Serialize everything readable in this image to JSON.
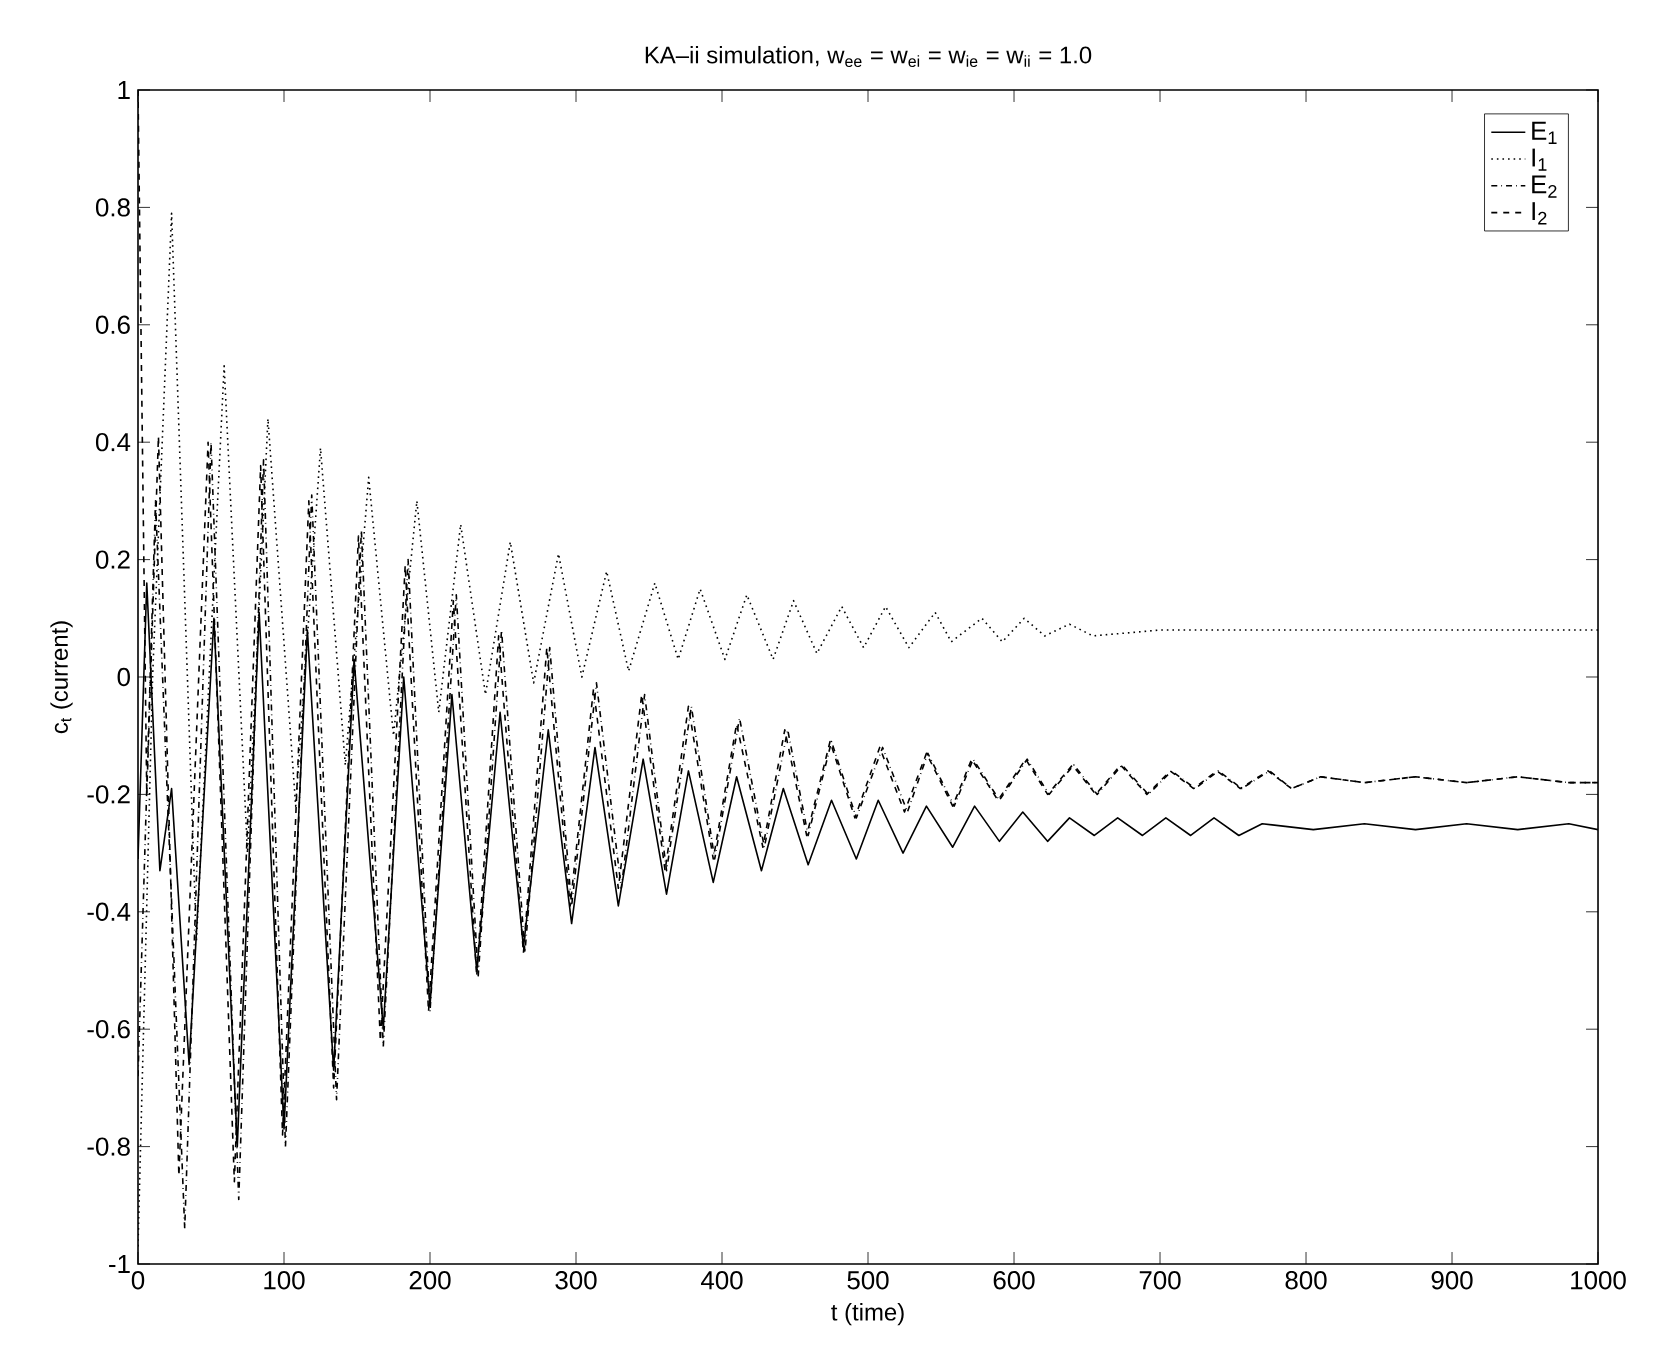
{
  "chart_data": {
    "type": "line",
    "title": "KA–ii simulation, w$_{ee}$ = w$_{ei}$ = w$_{ie}$ = w$_{ii}$ = 1.0",
    "xlabel": "t (time)",
    "ylabel": "c$_{t}$ (current)",
    "xlim": [
      0,
      1000
    ],
    "ylim": [
      -1,
      1
    ],
    "xticks": [
      0,
      100,
      200,
      300,
      400,
      500,
      600,
      700,
      800,
      900,
      1000
    ],
    "yticks": [
      -1,
      -0.8,
      -0.6,
      -0.4,
      -0.2,
      0,
      0.2,
      0.4,
      0.6,
      0.8,
      1
    ],
    "grid": false,
    "legend": "top right",
    "marker": "none",
    "series": [
      {
        "name": "E$_{1}$",
        "color": "#000000",
        "line_style": "solid",
        "x": [
          0,
          6,
          15,
          23,
          35,
          52,
          68,
          83,
          100,
          116,
          134,
          148,
          168,
          182,
          200,
          215,
          232,
          248,
          264,
          281,
          297,
          313,
          329,
          346,
          362,
          377,
          394,
          410,
          427,
          442,
          459,
          475,
          492,
          507,
          524,
          540,
          558,
          573,
          590,
          606,
          623,
          638,
          655,
          671,
          688,
          704,
          721,
          737,
          754,
          770,
          805,
          840,
          875,
          910,
          945,
          980,
          1000
        ],
        "values": [
          -0.31,
          0.16,
          -0.33,
          -0.19,
          -0.66,
          0.1,
          -0.8,
          0.11,
          -0.77,
          0.08,
          -0.67,
          0.03,
          -0.6,
          0.0,
          -0.56,
          -0.03,
          -0.5,
          -0.06,
          -0.46,
          -0.09,
          -0.42,
          -0.12,
          -0.39,
          -0.14,
          -0.37,
          -0.16,
          -0.35,
          -0.17,
          -0.33,
          -0.19,
          -0.32,
          -0.21,
          -0.31,
          -0.21,
          -0.3,
          -0.22,
          -0.29,
          -0.22,
          -0.28,
          -0.23,
          -0.28,
          -0.24,
          -0.27,
          -0.24,
          -0.27,
          -0.24,
          -0.27,
          -0.24,
          -0.27,
          -0.25,
          -0.26,
          -0.25,
          -0.26,
          -0.25,
          -0.26,
          -0.25,
          -0.26
        ]
      },
      {
        "name": "I$_{1}$",
        "color": "#000000",
        "line_style": "dotted",
        "x": [
          0,
          10,
          23,
          40,
          59,
          75,
          89,
          108,
          125,
          142,
          158,
          175,
          191,
          206,
          221,
          238,
          255,
          271,
          288,
          304,
          321,
          336,
          354,
          370,
          385,
          402,
          417,
          435,
          449,
          465,
          482,
          497,
          512,
          528,
          546,
          557,
          578,
          592,
          607,
          621,
          638,
          654,
          700,
          760,
          850,
          1000
        ],
        "values": [
          -0.97,
          0.0,
          0.79,
          -0.45,
          0.53,
          -0.3,
          0.44,
          -0.22,
          0.39,
          -0.15,
          0.34,
          -0.1,
          0.3,
          -0.06,
          0.26,
          -0.03,
          0.23,
          -0.01,
          0.21,
          0.0,
          0.18,
          0.01,
          0.16,
          0.03,
          0.15,
          0.03,
          0.14,
          0.03,
          0.13,
          0.04,
          0.12,
          0.05,
          0.12,
          0.05,
          0.11,
          0.06,
          0.1,
          0.06,
          0.1,
          0.07,
          0.09,
          0.07,
          0.08,
          0.08,
          0.08,
          0.08
        ]
      },
      {
        "name": "E$_{2}$",
        "color": "#000000",
        "line_style": "dashdot",
        "x": [
          0,
          12,
          32,
          50,
          69,
          86,
          101,
          119,
          136,
          153,
          168,
          185,
          200,
          218,
          233,
          249,
          265,
          282,
          297,
          314,
          331,
          347,
          362,
          379,
          395,
          412,
          429,
          445,
          459,
          475,
          492,
          510,
          527,
          541,
          559,
          572,
          590,
          609,
          624,
          641,
          657,
          674,
          692,
          708,
          724,
          740,
          756,
          775,
          790,
          810,
          840,
          875,
          910,
          945,
          980,
          1000
        ],
        "values": [
          -0.68,
          0.3,
          -0.94,
          0.4,
          -0.89,
          0.37,
          -0.8,
          0.31,
          -0.72,
          0.25,
          -0.63,
          0.2,
          -0.57,
          0.14,
          -0.51,
          0.08,
          -0.47,
          0.05,
          -0.39,
          -0.01,
          -0.36,
          -0.03,
          -0.33,
          -0.05,
          -0.31,
          -0.07,
          -0.29,
          -0.09,
          -0.27,
          -0.11,
          -0.24,
          -0.12,
          -0.23,
          -0.13,
          -0.22,
          -0.14,
          -0.21,
          -0.14,
          -0.2,
          -0.15,
          -0.2,
          -0.15,
          -0.2,
          -0.16,
          -0.19,
          -0.16,
          -0.19,
          -0.16,
          -0.19,
          -0.17,
          -0.18,
          -0.17,
          -0.18,
          -0.17,
          -0.18,
          -0.18
        ]
      },
      {
        "name": "I$_{2}$",
        "color": "#000000",
        "line_style": "dashed",
        "x": [
          0,
          6,
          14,
          28,
          48,
          66,
          84,
          99,
          117,
          134,
          151,
          166,
          183,
          199,
          216,
          232,
          247,
          264,
          280,
          296,
          312,
          329,
          345,
          361,
          377,
          394,
          410,
          428,
          443,
          458,
          474,
          491,
          508,
          525,
          540,
          558,
          571,
          589,
          608,
          623,
          640,
          656,
          673,
          691,
          707,
          723,
          739,
          755,
          774,
          790,
          810,
          840,
          875,
          910,
          945,
          980,
          1000
        ],
        "values": [
          1.0,
          -0.2,
          0.41,
          -0.85,
          0.4,
          -0.86,
          0.36,
          -0.78,
          0.3,
          -0.7,
          0.24,
          -0.62,
          0.19,
          -0.57,
          0.13,
          -0.51,
          0.07,
          -0.47,
          0.05,
          -0.39,
          -0.02,
          -0.36,
          -0.03,
          -0.33,
          -0.05,
          -0.31,
          -0.08,
          -0.29,
          -0.09,
          -0.27,
          -0.11,
          -0.24,
          -0.12,
          -0.23,
          -0.13,
          -0.22,
          -0.14,
          -0.21,
          -0.14,
          -0.2,
          -0.15,
          -0.2,
          -0.15,
          -0.2,
          -0.16,
          -0.19,
          -0.16,
          -0.19,
          -0.16,
          -0.19,
          -0.17,
          -0.18,
          -0.17,
          -0.18,
          -0.17,
          -0.18,
          -0.18
        ]
      }
    ]
  }
}
